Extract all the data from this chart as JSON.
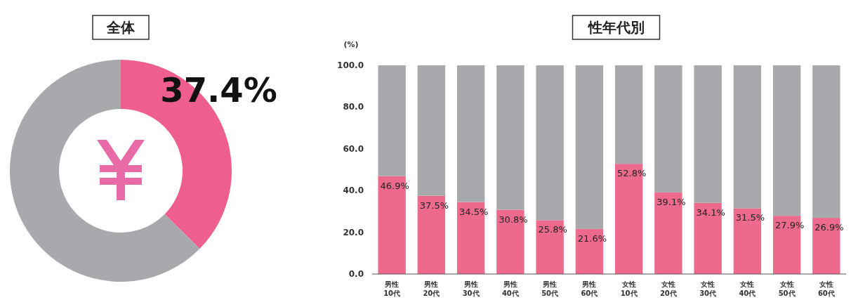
{
  "chart_data": [
    {
      "type": "donut",
      "title": "全体",
      "categories": [
        null,
        null
      ],
      "values": [
        37.4,
        62.6
      ],
      "colors": [
        "#ee5f8f",
        "#a8a9ad"
      ],
      "value_labels": [
        "37.4%",
        null
      ]
    },
    {
      "type": "bar",
      "title": "性年代別",
      "ylabel": "(%)",
      "stacked": true,
      "categories": [
        "男性\n10代",
        "男性\n20代",
        "男性\n30代",
        "男性\n40代",
        "男性\n50代",
        "男性\n60代",
        "女性\n10代",
        "女性\n20代",
        "女性\n30代",
        "女性\n40代",
        "女性\n50代",
        "女性\n60代"
      ],
      "series": [
        {
          "color": "#ee6a8c",
          "values": [
            46.9,
            37.5,
            34.5,
            30.8,
            25.8,
            21.6,
            52.8,
            39.1,
            34.1,
            31.5,
            27.9,
            26.9
          ],
          "value_labels": [
            "46.9%",
            "37.5%",
            "34.5%",
            "30.8%",
            "25.8%",
            "21.6%",
            "52.8%",
            "39.1%",
            "34.1%",
            "31.5%",
            "27.9%",
            "26.9%"
          ]
        },
        {
          "color": "#a8a9ad",
          "values": [
            53.1,
            62.5,
            65.5,
            69.2,
            74.2,
            78.4,
            47.2,
            60.9,
            65.9,
            68.5,
            72.1,
            73.1
          ]
        }
      ],
      "ylim": [
        0,
        100
      ],
      "yticks": [
        {
          "value": 0,
          "label": "0.0"
        },
        {
          "value": 20,
          "label": "20.0"
        },
        {
          "value": 40,
          "label": "40.0"
        },
        {
          "value": 60,
          "label": "60.0"
        },
        {
          "value": 80,
          "label": "80.0"
        },
        {
          "value": 100,
          "label": "100.0"
        }
      ],
      "grid": false
    }
  ]
}
